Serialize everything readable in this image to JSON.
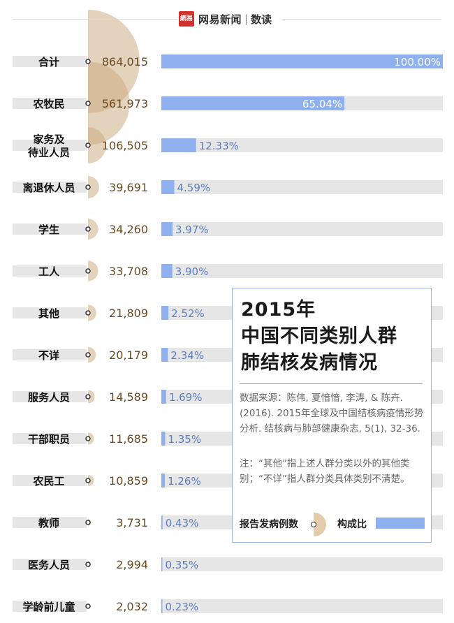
{
  "header": {
    "logo_mark": "網易",
    "brand": "网易新闻",
    "separator": "|",
    "channel": "数读"
  },
  "legend": {
    "title_line1": "2015年",
    "title_line2": "中国不同类别人群",
    "title_line3": "肺结核发病情况",
    "source": "数据来源：陈伟, 夏愔愔, 李涛, & 陈卉. (2016). 2015年全球及中国结核病疫情形势分析. 结核病与肺部健康杂志, 5(1), 32-36.",
    "note": "注：“其他”指上述人群分类以外的其他类别；“不详”指人群分类具体类别不清楚。",
    "key_count": "报告发病例数",
    "key_ratio": "构成比"
  },
  "colors": {
    "bar": "#8fb0ef",
    "bar_track": "#e6e6e6",
    "label_bg": "#e6e6e6",
    "semicircle": "#c9a77a",
    "count_text": "#6b4a1e",
    "pct_text": "#5b7ec2"
  },
  "chart_data": {
    "type": "bar",
    "categories": [
      "合计",
      "农牧民",
      "家务及待业人员",
      "离退休人员",
      "学生",
      "工人",
      "其他",
      "不详",
      "服务人员",
      "干部职员",
      "农民工",
      "教师",
      "医务人员",
      "学龄前儿童"
    ],
    "category_lines": [
      [
        "合计"
      ],
      [
        "农牧民"
      ],
      [
        "家务及",
        "待业人员"
      ],
      [
        "离退休人员"
      ],
      [
        "学生"
      ],
      [
        "工人"
      ],
      [
        "其他"
      ],
      [
        "不详"
      ],
      [
        "服务人员"
      ],
      [
        "干部职员"
      ],
      [
        "农民工"
      ],
      [
        "教师"
      ],
      [
        "医务人员"
      ],
      [
        "学龄前儿童"
      ]
    ],
    "series": [
      {
        "name": "报告发病例数",
        "values": [
          864015,
          561973,
          106505,
          39691,
          34260,
          33708,
          21809,
          20179,
          14589,
          11685,
          10859,
          3731,
          2994,
          2032
        ],
        "labels": [
          "864,015",
          "561,973",
          "106,505",
          "39,691",
          "34,260",
          "33,708",
          "21,809",
          "20,179",
          "14,589",
          "11,685",
          "10,859",
          "3,731",
          "2,994",
          "2,032"
        ]
      },
      {
        "name": "构成比",
        "values": [
          100.0,
          65.04,
          12.33,
          4.59,
          3.97,
          3.9,
          2.52,
          2.34,
          1.69,
          1.35,
          1.26,
          0.43,
          0.35,
          0.23
        ],
        "labels": [
          "100.00%",
          "65.04%",
          "12.33%",
          "4.59%",
          "3.97%",
          "3.90%",
          "2.52%",
          "2.34%",
          "1.69%",
          "1.35%",
          "1.26%",
          "0.43%",
          "0.35%",
          "0.23%"
        ]
      }
    ],
    "xlim": [
      0,
      100
    ]
  }
}
